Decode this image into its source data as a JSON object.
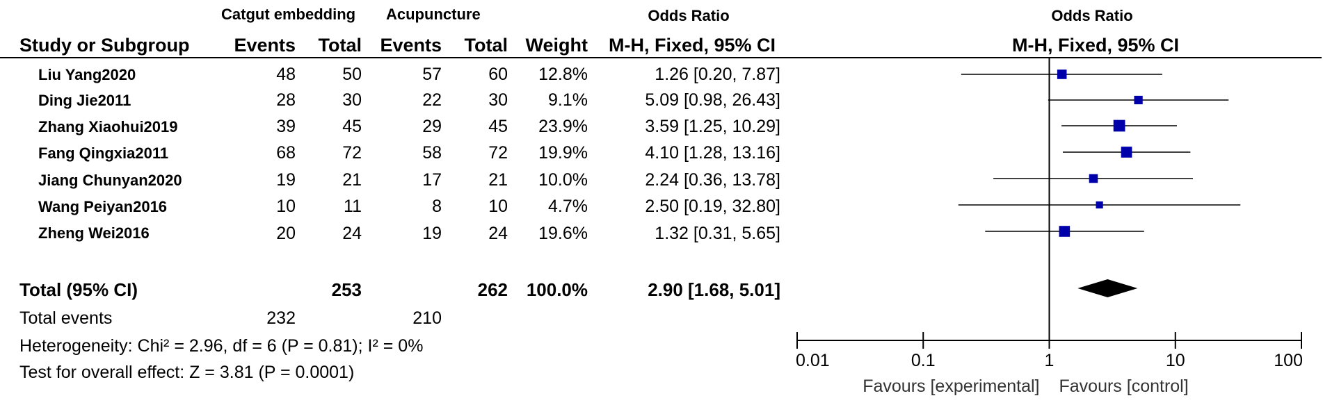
{
  "header": {
    "group1": "Catgut embedding",
    "group2": "Acupuncture",
    "odds_ratio_table": "Odds Ratio",
    "odds_ratio_plot": "Odds Ratio",
    "study_col": "Study or Subgroup",
    "events1": "Events",
    "total1": "Total",
    "events2": "Events",
    "total2": "Total",
    "weight": "Weight",
    "method_table": "M-H, Fixed, 95% CI",
    "method_plot": "M-H, Fixed, 95% CI"
  },
  "studies": [
    {
      "name": "Liu Yang2020",
      "e1": "48",
      "t1": "50",
      "e2": "57",
      "t2": "60",
      "weight": "12.8%",
      "ci_text": "1.26 [0.20, 7.87]"
    },
    {
      "name": "Ding Jie2011",
      "e1": "28",
      "t1": "30",
      "e2": "22",
      "t2": "30",
      "weight": "9.1%",
      "ci_text": "5.09 [0.98, 26.43]"
    },
    {
      "name": "Zhang Xiaohui2019",
      "e1": "39",
      "t1": "45",
      "e2": "29",
      "t2": "45",
      "weight": "23.9%",
      "ci_text": "3.59 [1.25, 10.29]"
    },
    {
      "name": "Fang Qingxia2011",
      "e1": "68",
      "t1": "72",
      "e2": "58",
      "t2": "72",
      "weight": "19.9%",
      "ci_text": "4.10 [1.28, 13.16]"
    },
    {
      "name": "Jiang Chunyan2020",
      "e1": "19",
      "t1": "21",
      "e2": "17",
      "t2": "21",
      "weight": "10.0%",
      "ci_text": "2.24 [0.36, 13.78]"
    },
    {
      "name": "Wang Peiyan2016",
      "e1": "10",
      "t1": "11",
      "e2": "8",
      "t2": "10",
      "weight": "4.7%",
      "ci_text": "2.50 [0.19, 32.80]"
    },
    {
      "name": "Zheng Wei2016",
      "e1": "20",
      "t1": "24",
      "e2": "19",
      "t2": "24",
      "weight": "19.6%",
      "ci_text": "1.32 [0.31, 5.65]"
    }
  ],
  "total": {
    "label": "Total (95% CI)",
    "t1": "253",
    "t2": "262",
    "weight": "100.0%",
    "ci_text": "2.90 [1.68, 5.01]"
  },
  "total_events": {
    "label": "Total events",
    "e1": "232",
    "e2": "210"
  },
  "heterogeneity": "Heterogeneity: Chi² = 2.96, df = 6 (P = 0.81); I² = 0%",
  "overall_effect": "Test for overall effect: Z = 3.81 (P = 0.0001)",
  "axis": {
    "ticks": [
      {
        "value": 0.01,
        "label": "0.01"
      },
      {
        "value": 0.1,
        "label": "0.1"
      },
      {
        "value": 1,
        "label": "1"
      },
      {
        "value": 10,
        "label": "10"
      },
      {
        "value": 100,
        "label": "100"
      }
    ],
    "favours_left": "Favours [experimental]",
    "favours_right": "Favours [control]"
  },
  "chart_data": {
    "type": "forest",
    "scale": "log",
    "xlim": [
      0.01,
      100
    ],
    "reference_line": 1,
    "studies": [
      {
        "name": "Liu Yang2020",
        "or": 1.26,
        "lo": 0.2,
        "hi": 7.87,
        "weight": 12.8
      },
      {
        "name": "Ding Jie2011",
        "or": 5.09,
        "lo": 0.98,
        "hi": 26.43,
        "weight": 9.1
      },
      {
        "name": "Zhang Xiaohui2019",
        "or": 3.59,
        "lo": 1.25,
        "hi": 10.29,
        "weight": 23.9
      },
      {
        "name": "Fang Qingxia2011",
        "or": 4.1,
        "lo": 1.28,
        "hi": 13.16,
        "weight": 19.9
      },
      {
        "name": "Jiang Chunyan2020",
        "or": 2.24,
        "lo": 0.36,
        "hi": 13.78,
        "weight": 10.0
      },
      {
        "name": "Wang Peiyan2016",
        "or": 2.5,
        "lo": 0.19,
        "hi": 32.8,
        "weight": 4.7
      },
      {
        "name": "Zheng Wei2016",
        "or": 1.32,
        "lo": 0.31,
        "hi": 5.65,
        "weight": 19.6
      }
    ],
    "pooled": {
      "or": 2.9,
      "lo": 1.68,
      "hi": 5.01
    },
    "marker_color": "#0000aa",
    "diamond_color": "#000000"
  }
}
